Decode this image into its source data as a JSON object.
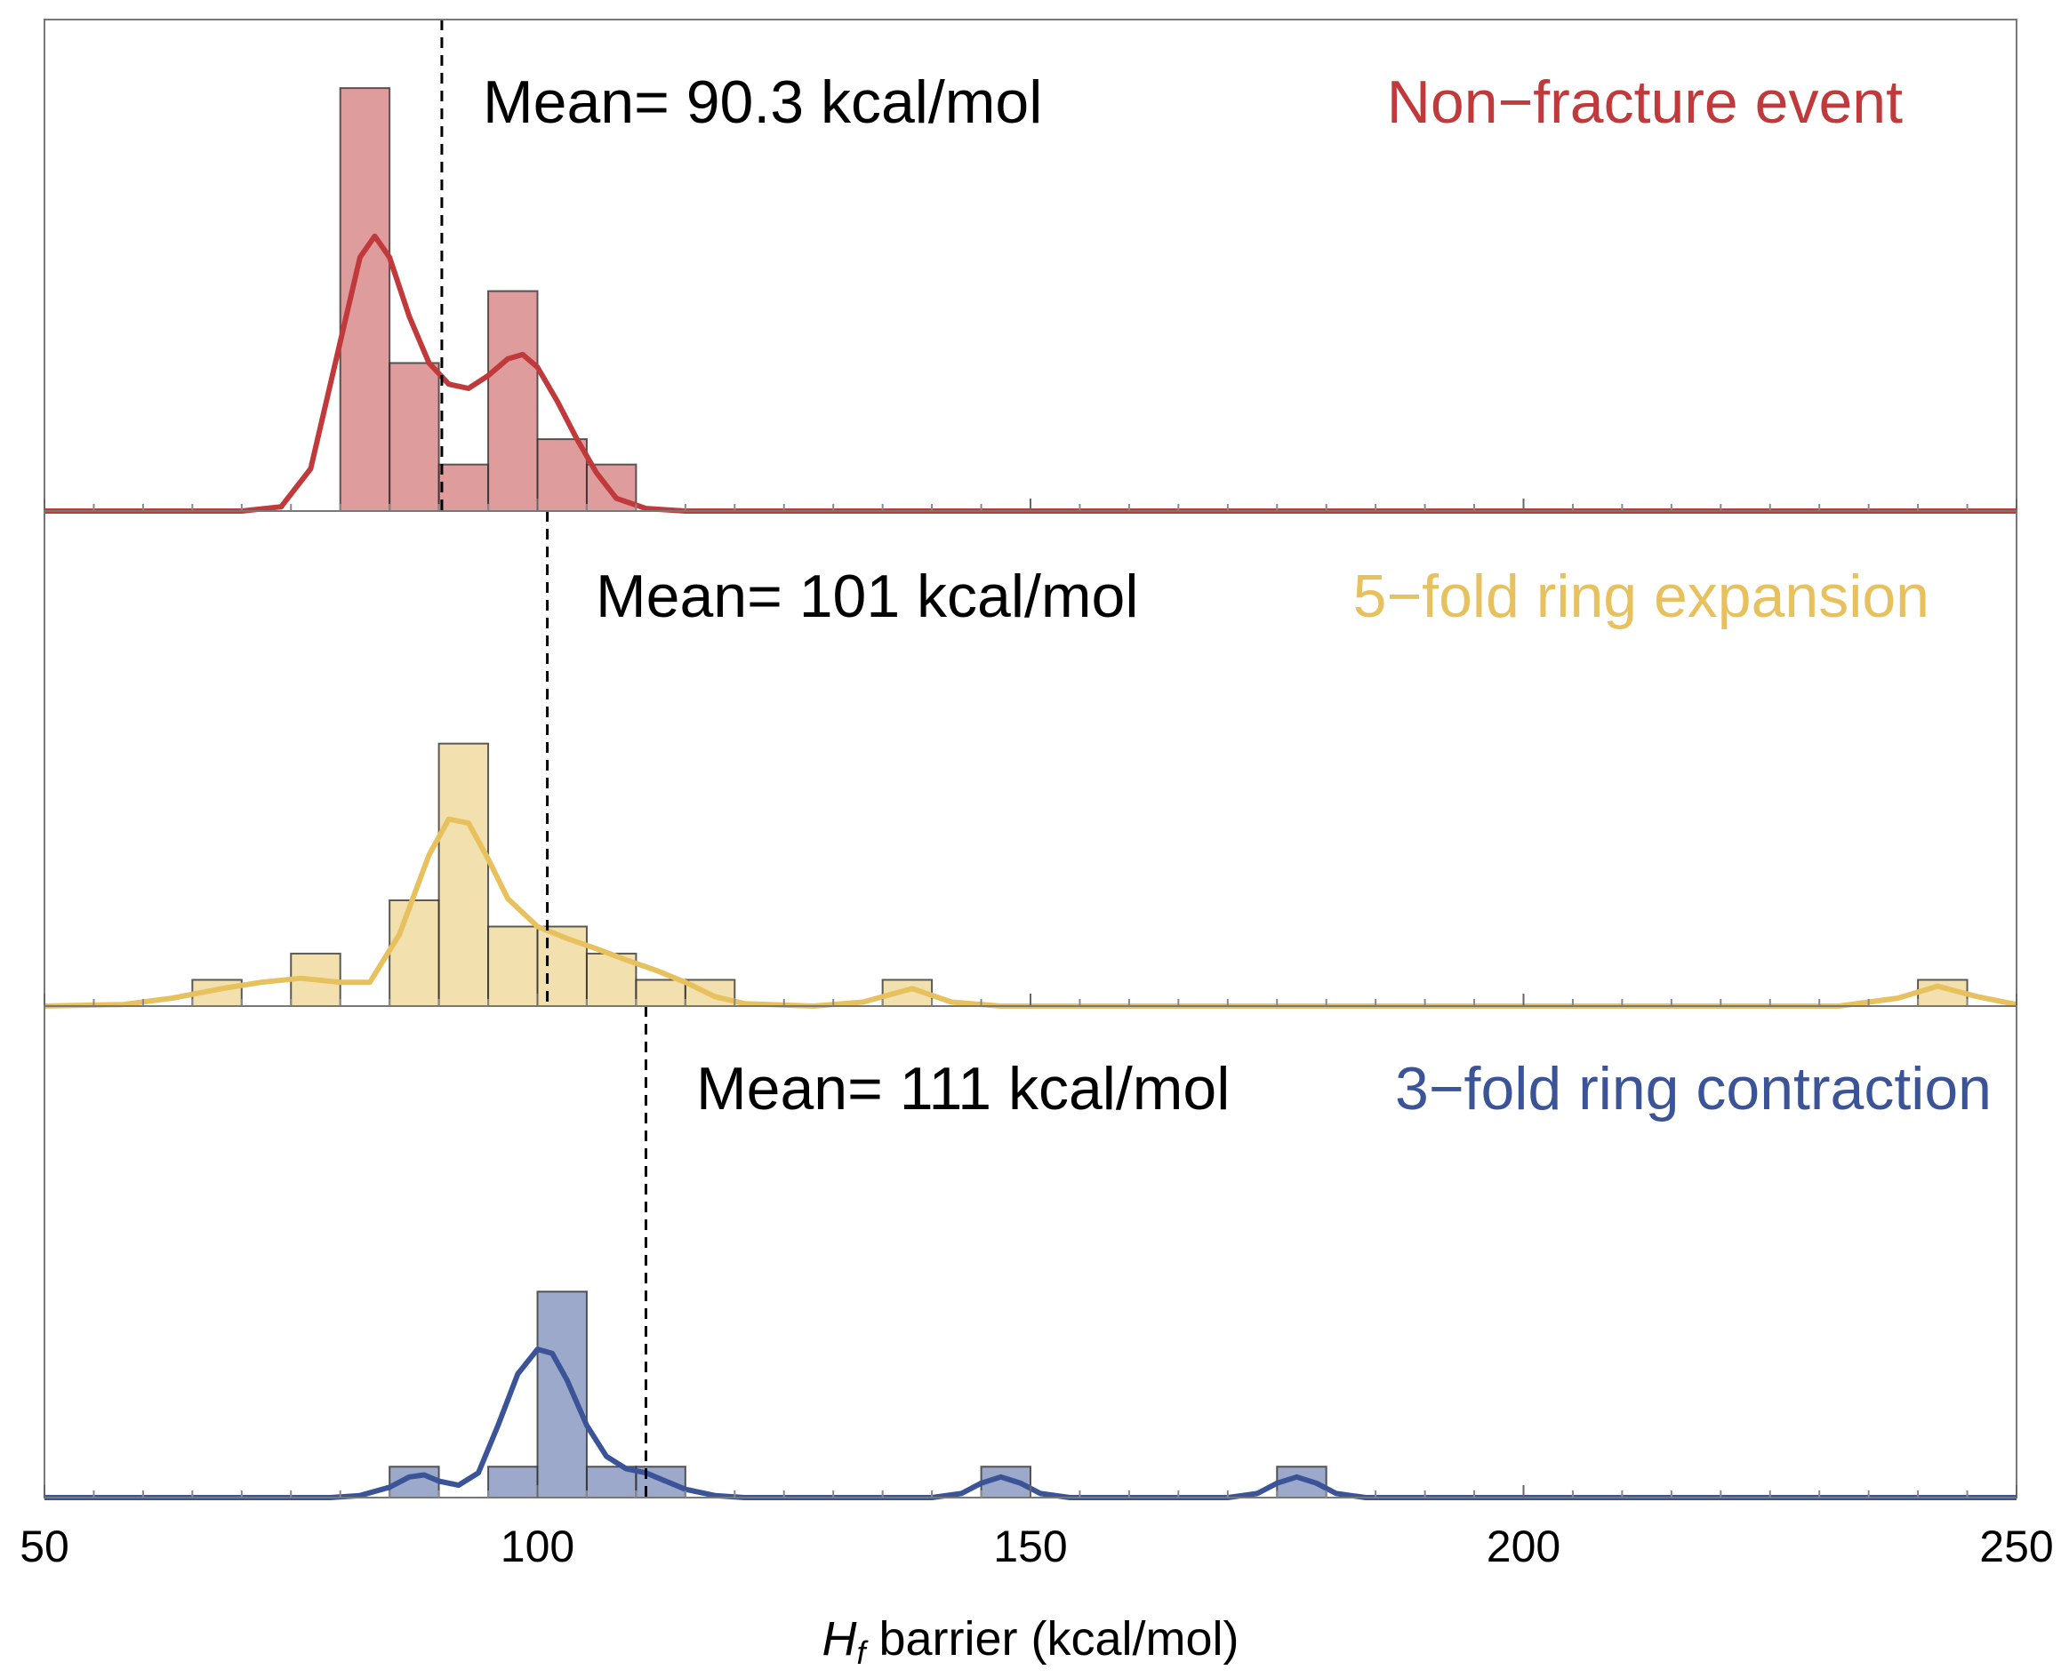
{
  "chart_data": {
    "type": "histogram",
    "xlabel": "H",
    "xlabel_sub": "f",
    "xlabel_rest": " barrier (kcal/mol)",
    "xlim": [
      50,
      250
    ],
    "xticks": [
      "50",
      "100",
      "150",
      "200",
      "250"
    ],
    "bin_width": 5,
    "panels": [
      {
        "name": "Non−fracture event",
        "color": "#c0393b",
        "mean_label": "Mean= 90.3 kcal/mol",
        "mean_value": 90.3,
        "ymax": 5.6,
        "bins": [
          {
            "start": 80,
            "count": 5
          },
          {
            "start": 85,
            "count": 1.75
          },
          {
            "start": 90,
            "count": 0.55
          },
          {
            "start": 95,
            "count": 2.6
          },
          {
            "start": 100,
            "count": 0.85
          },
          {
            "start": 105,
            "count": 0.55
          }
        ],
        "kde": [
          [
            50,
            0
          ],
          [
            70,
            0
          ],
          [
            74,
            0.05
          ],
          [
            77,
            0.5
          ],
          [
            80,
            2.0
          ],
          [
            82,
            3.0
          ],
          [
            83.5,
            3.25
          ],
          [
            85,
            3.0
          ],
          [
            87,
            2.3
          ],
          [
            89,
            1.75
          ],
          [
            91,
            1.5
          ],
          [
            93,
            1.45
          ],
          [
            95,
            1.6
          ],
          [
            97,
            1.8
          ],
          [
            98.5,
            1.85
          ],
          [
            100,
            1.7
          ],
          [
            102,
            1.3
          ],
          [
            104,
            0.85
          ],
          [
            106,
            0.45
          ],
          [
            108,
            0.15
          ],
          [
            111,
            0.03
          ],
          [
            115,
            0
          ],
          [
            250,
            0
          ]
        ]
      },
      {
        "name": "5−fold ring expansion",
        "color": "#e8c15f",
        "mean_label": "Mean= 101 kcal/mol",
        "mean_value": 101,
        "ymax": 6.0,
        "bins": [
          {
            "start": 65,
            "count": 0.33
          },
          {
            "start": 75,
            "count": 0.66
          },
          {
            "start": 85,
            "count": 1.33
          },
          {
            "start": 90,
            "count": 3.3
          },
          {
            "start": 95,
            "count": 1.0
          },
          {
            "start": 100,
            "count": 1.0
          },
          {
            "start": 105,
            "count": 0.66
          },
          {
            "start": 110,
            "count": 0.33
          },
          {
            "start": 115,
            "count": 0.33
          },
          {
            "start": 135,
            "count": 0.33
          },
          {
            "start": 240,
            "count": 0.33
          }
        ],
        "kde": [
          [
            50,
            0
          ],
          [
            58,
            0.02
          ],
          [
            63,
            0.1
          ],
          [
            68,
            0.22
          ],
          [
            72,
            0.3
          ],
          [
            76,
            0.35
          ],
          [
            80,
            0.3
          ],
          [
            83,
            0.3
          ],
          [
            86,
            0.9
          ],
          [
            89,
            1.9
          ],
          [
            91,
            2.35
          ],
          [
            93,
            2.3
          ],
          [
            95,
            1.85
          ],
          [
            97,
            1.35
          ],
          [
            100,
            1.0
          ],
          [
            103,
            0.85
          ],
          [
            106,
            0.72
          ],
          [
            109,
            0.58
          ],
          [
            112,
            0.45
          ],
          [
            115,
            0.3
          ],
          [
            118,
            0.12
          ],
          [
            121,
            0.03
          ],
          [
            128,
            0.0
          ],
          [
            133,
            0.05
          ],
          [
            138,
            0.22
          ],
          [
            142,
            0.05
          ],
          [
            147,
            0
          ],
          [
            232,
            0
          ],
          [
            238,
            0.1
          ],
          [
            242,
            0.25
          ],
          [
            246,
            0.12
          ],
          [
            250,
            0.02
          ]
        ]
      },
      {
        "name": "3−fold ring contraction",
        "color": "#3a5497",
        "mean_label": "Mean= 111  kcal/mol",
        "mean_value": 111,
        "ymax": 2.3,
        "bins": [
          {
            "start": 85,
            "count": 0.15
          },
          {
            "start": 95,
            "count": 0.15
          },
          {
            "start": 100,
            "count": 1.0
          },
          {
            "start": 105,
            "count": 0.15
          },
          {
            "start": 110,
            "count": 0.15
          },
          {
            "start": 145,
            "count": 0.15
          },
          {
            "start": 175,
            "count": 0.15
          }
        ],
        "kde": [
          [
            50,
            0
          ],
          [
            79,
            0
          ],
          [
            82,
            0.01
          ],
          [
            85,
            0.05
          ],
          [
            87,
            0.1
          ],
          [
            88.5,
            0.11
          ],
          [
            90,
            0.08
          ],
          [
            92,
            0.06
          ],
          [
            94,
            0.12
          ],
          [
            96,
            0.35
          ],
          [
            98,
            0.6
          ],
          [
            100,
            0.72
          ],
          [
            101.5,
            0.7
          ],
          [
            103,
            0.57
          ],
          [
            105,
            0.35
          ],
          [
            107,
            0.2
          ],
          [
            109,
            0.14
          ],
          [
            111,
            0.12
          ],
          [
            113,
            0.08
          ],
          [
            115,
            0.04
          ],
          [
            118,
            0.01
          ],
          [
            121,
            0
          ],
          [
            140,
            0
          ],
          [
            143,
            0.02
          ],
          [
            145,
            0.07
          ],
          [
            147,
            0.1
          ],
          [
            149,
            0.07
          ],
          [
            151,
            0.02
          ],
          [
            154,
            0
          ],
          [
            170,
            0
          ],
          [
            173,
            0.02
          ],
          [
            175,
            0.07
          ],
          [
            177,
            0.1
          ],
          [
            179,
            0.07
          ],
          [
            181,
            0.02
          ],
          [
            184,
            0
          ],
          [
            250,
            0
          ]
        ]
      }
    ]
  }
}
